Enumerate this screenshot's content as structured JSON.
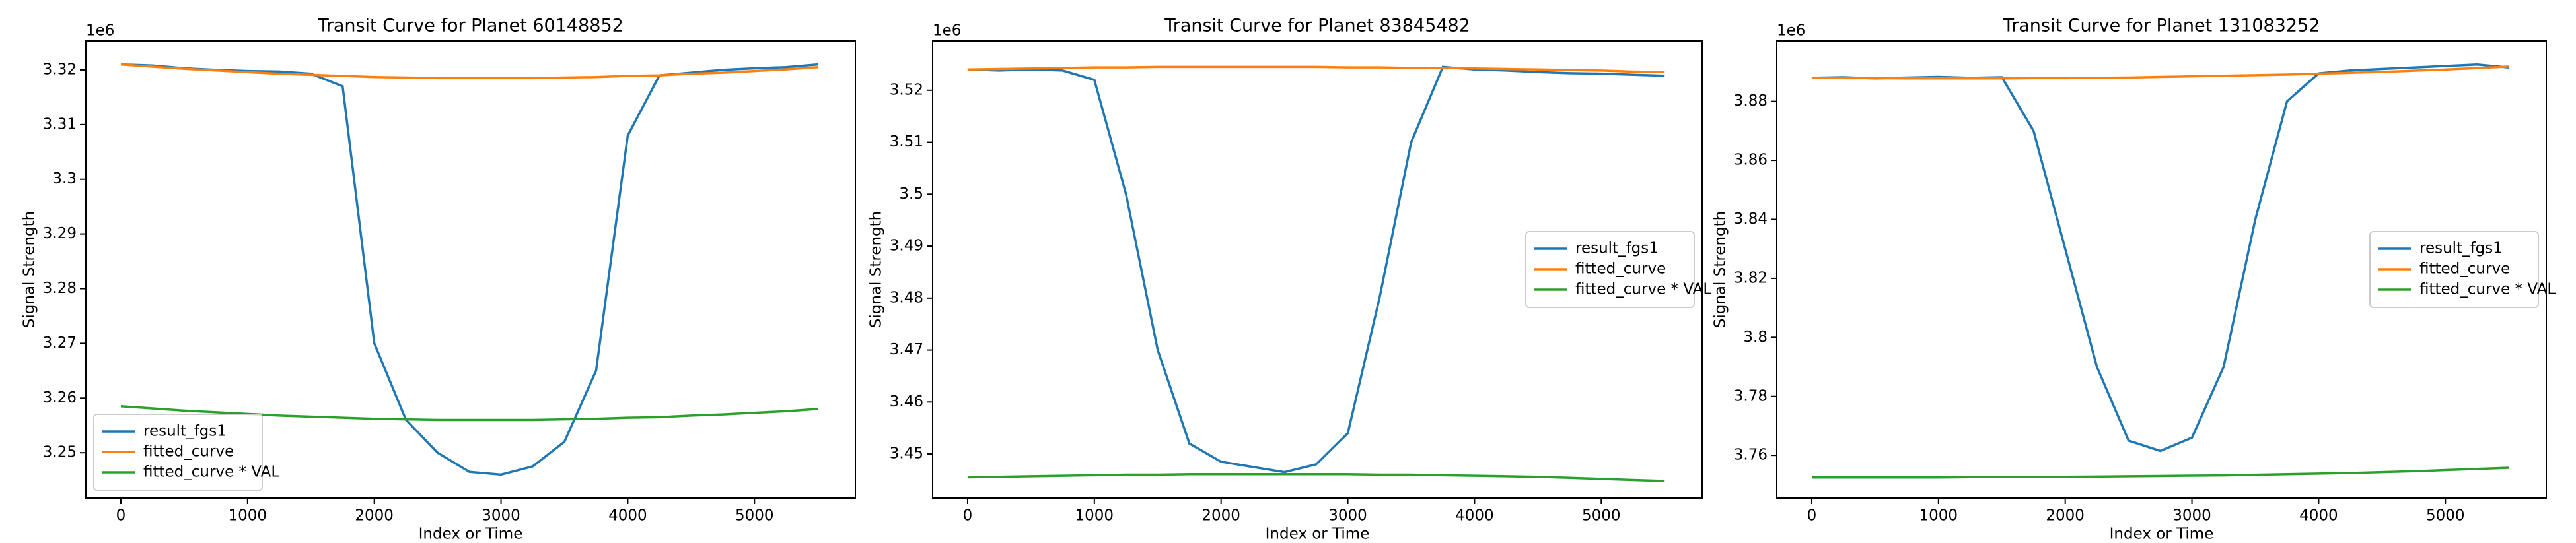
{
  "chart_data": [
    {
      "type": "line",
      "title": "Transit Curve for Planet 60148852",
      "xlabel": "Index or Time",
      "ylabel": "Signal Strength",
      "y_offset_label": "1e6",
      "x": [
        0,
        250,
        500,
        750,
        1000,
        1250,
        1500,
        1750,
        2000,
        2250,
        2500,
        2750,
        3000,
        3250,
        3500,
        3750,
        4000,
        4250,
        4500,
        4750,
        5000,
        5250,
        5500
      ],
      "series": [
        {
          "name": "result_fgs1",
          "color": "#1f77b4",
          "values": [
            3.321,
            3.3208,
            3.3203,
            3.32,
            3.3198,
            3.3197,
            3.3193,
            3.317,
            3.27,
            3.256,
            3.25,
            3.2465,
            3.246,
            3.2475,
            3.252,
            3.265,
            3.308,
            3.319,
            3.3195,
            3.32,
            3.3203,
            3.3205,
            3.321
          ]
        },
        {
          "name": "fitted_curve",
          "color": "#ff7f0e",
          "values": [
            3.321,
            3.3206,
            3.3202,
            3.3199,
            3.3196,
            3.3193,
            3.3191,
            3.3189,
            3.3187,
            3.3186,
            3.3185,
            3.3185,
            3.3185,
            3.3185,
            3.3186,
            3.3187,
            3.3189,
            3.319,
            3.3193,
            3.3195,
            3.3198,
            3.3201,
            3.3205
          ]
        },
        {
          "name": "fitted_curve * VAL",
          "color": "#2ca02c",
          "values": [
            3.2585,
            3.2581,
            3.2577,
            3.2574,
            3.2571,
            3.2568,
            3.2566,
            3.2564,
            3.2562,
            3.2561,
            3.256,
            3.256,
            3.256,
            3.256,
            3.2561,
            3.2562,
            3.2564,
            3.2565,
            3.2568,
            3.257,
            3.2573,
            3.2576,
            3.258
          ]
        }
      ],
      "xlim": [
        -276,
        5796
      ],
      "ylim": [
        3.2417,
        3.3253
      ],
      "xticks": [
        0,
        1000,
        2000,
        3000,
        4000,
        5000
      ],
      "yticks": [
        3.25,
        3.26,
        3.27,
        3.28,
        3.29,
        3.3,
        3.31,
        3.32
      ],
      "legend": "lower left"
    },
    {
      "type": "line",
      "title": "Transit Curve for Planet 83845482",
      "xlabel": "Index or Time",
      "ylabel": "Signal Strength",
      "y_offset_label": "1e6",
      "x": [
        0,
        250,
        500,
        750,
        1000,
        1250,
        1500,
        1750,
        2000,
        2250,
        2500,
        2750,
        3000,
        3250,
        3500,
        3750,
        4000,
        4250,
        4500,
        4750,
        5000,
        5250,
        5500
      ],
      "series": [
        {
          "name": "result_fgs1",
          "color": "#1f77b4",
          "values": [
            3.524,
            3.5238,
            3.524,
            3.5238,
            3.522,
            3.5,
            3.47,
            3.452,
            3.4485,
            3.4475,
            3.4465,
            3.448,
            3.454,
            3.48,
            3.51,
            3.5245,
            3.524,
            3.5238,
            3.5235,
            3.5233,
            3.5232,
            3.523,
            3.5228
          ]
        },
        {
          "name": "fitted_curve",
          "color": "#ff7f0e",
          "values": [
            3.524,
            3.5241,
            3.5242,
            3.5243,
            3.5244,
            3.5244,
            3.5245,
            3.5245,
            3.5245,
            3.5245,
            3.5245,
            3.5245,
            3.5244,
            3.5244,
            3.5243,
            3.5243,
            3.5242,
            3.5241,
            3.524,
            3.5239,
            3.5238,
            3.5236,
            3.5235
          ]
        },
        {
          "name": "fitted_curve * VAL",
          "color": "#2ca02c",
          "values": [
            3.4455,
            3.4456,
            3.4457,
            3.4458,
            3.4459,
            3.446,
            3.446,
            3.4461,
            3.4461,
            3.4461,
            3.4461,
            3.4461,
            3.4461,
            3.446,
            3.446,
            3.4459,
            3.4458,
            3.4457,
            3.4456,
            3.4454,
            3.4452,
            3.445,
            3.4448
          ]
        }
      ],
      "xlim": [
        -276,
        5796
      ],
      "ylim": [
        3.4415,
        3.5295
      ],
      "xticks": [
        0,
        1000,
        2000,
        3000,
        4000,
        5000
      ],
      "yticks": [
        3.45,
        3.46,
        3.47,
        3.48,
        3.49,
        3.5,
        3.51,
        3.52
      ],
      "legend": "center right"
    },
    {
      "type": "line",
      "title": "Transit Curve for Planet 131083252",
      "xlabel": "Index or Time",
      "ylabel": "Signal Strength",
      "y_offset_label": "1e6",
      "x": [
        0,
        250,
        500,
        750,
        1000,
        1250,
        1500,
        1750,
        2000,
        2250,
        2500,
        2750,
        3000,
        3250,
        3500,
        3750,
        4000,
        4250,
        4500,
        4750,
        5000,
        5250,
        5500
      ],
      "series": [
        {
          "name": "result_fgs1",
          "color": "#1f77b4",
          "values": [
            3.888,
            3.8882,
            3.8878,
            3.8881,
            3.8883,
            3.888,
            3.8882,
            3.87,
            3.83,
            3.79,
            3.765,
            3.7615,
            3.766,
            3.79,
            3.84,
            3.88,
            3.8895,
            3.8905,
            3.891,
            3.8915,
            3.892,
            3.8925,
            3.8915
          ]
        },
        {
          "name": "fitted_curve",
          "color": "#ff7f0e",
          "values": [
            3.888,
            3.8879,
            3.8879,
            3.8878,
            3.8878,
            3.8878,
            3.8878,
            3.8879,
            3.8879,
            3.888,
            3.8881,
            3.8883,
            3.8885,
            3.8887,
            3.8889,
            3.8891,
            3.8894,
            3.8897,
            3.89,
            3.8904,
            3.8908,
            3.8913,
            3.8918
          ]
        },
        {
          "name": "fitted_curve * VAL",
          "color": "#2ca02c",
          "values": [
            3.7525,
            3.7525,
            3.7525,
            3.7525,
            3.7525,
            3.7526,
            3.7526,
            3.7527,
            3.7527,
            3.7528,
            3.7529,
            3.753,
            3.7531,
            3.7532,
            3.7534,
            3.7536,
            3.7538,
            3.754,
            3.7543,
            3.7546,
            3.755,
            3.7554,
            3.7558
          ]
        }
      ],
      "xlim": [
        -276,
        5796
      ],
      "ylim": [
        3.7455,
        3.9005
      ],
      "xticks": [
        0,
        1000,
        2000,
        3000,
        4000,
        5000
      ],
      "yticks": [
        3.76,
        3.78,
        3.8,
        3.82,
        3.84,
        3.86,
        3.88
      ],
      "legend": "center right"
    }
  ]
}
